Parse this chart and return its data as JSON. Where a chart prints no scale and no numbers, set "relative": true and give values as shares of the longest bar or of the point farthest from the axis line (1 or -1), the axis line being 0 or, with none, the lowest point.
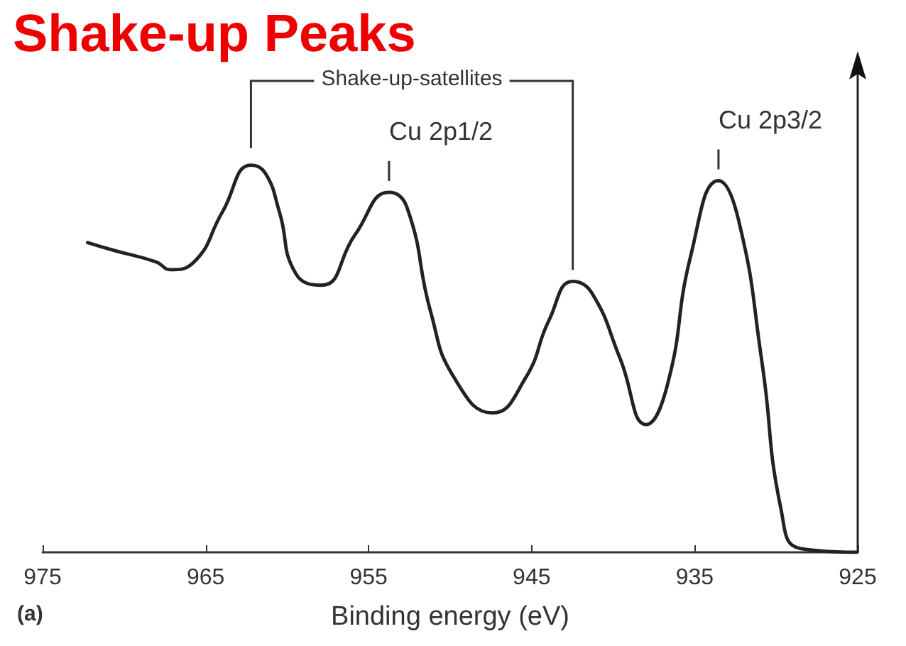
{
  "chart_data": {
    "type": "line",
    "title": "Shake-up Peaks",
    "xlabel": "Binding energy (eV)",
    "relative": true,
    "xlim": [
      975,
      925
    ],
    "xticks": [
      975,
      965,
      955,
      945,
      935,
      925
    ],
    "x": [
      972.24,
      970.64,
      968.03,
      967.16,
      965.71,
      963.96,
      962.22,
      961.35,
      960.48,
      959.47,
      957.87,
      955.84,
      953.75,
      952.64,
      951.19,
      949.74,
      947.4,
      945.38,
      943.93,
      942.48,
      941.31,
      939.57,
      937.98,
      936.69,
      935.22,
      933.54,
      932.32,
      930.87,
      929.7,
      928.54,
      925.09
    ],
    "series": [
      {
        "color": "#222222",
        "values": [
          0.8,
          0.78,
          0.75,
          0.73,
          0.75,
          0.88,
          1.0,
          0.98,
          0.88,
          0.72,
          0.69,
          0.82,
          0.93,
          0.89,
          0.62,
          0.45,
          0.36,
          0.45,
          0.6,
          0.7,
          0.67,
          0.5,
          0.33,
          0.43,
          0.77,
          0.96,
          0.86,
          0.49,
          0.11,
          0.01,
          0.0
        ]
      }
    ],
    "annotations": [
      "Shake-up-satellites",
      {
        "text": "Cu 2p1/2",
        "x": 953.75,
        "y": 0.93
      },
      {
        "text": "Cu 2p3/2",
        "x": 933.54,
        "y": 0.96
      },
      "(a)"
    ],
    "grid": false,
    "marker": "none",
    "line_style": "solid"
  }
}
